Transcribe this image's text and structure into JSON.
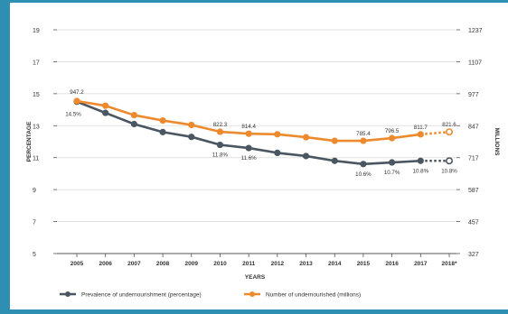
{
  "chart_data": {
    "type": "line",
    "xlabel": "YEARS",
    "ylabel_left": "PERCENTAGE",
    "ylabel_right": "MILLIONS",
    "categories": [
      "2005",
      "2006",
      "2007",
      "2008",
      "2009",
      "2010",
      "2011",
      "2012",
      "2013",
      "2014",
      "2015",
      "2016",
      "2017",
      "2018*"
    ],
    "left_axis": {
      "ticks": [
        "5",
        "7",
        "9",
        "11",
        "13",
        "15",
        "17",
        "19"
      ],
      "range": [
        5,
        19
      ]
    },
    "right_axis": {
      "ticks": [
        "327",
        "457",
        "587",
        "717",
        "847",
        "977",
        "1107",
        "1237"
      ],
      "range": [
        327,
        1237
      ]
    },
    "grid": true,
    "legend_position": "bottom",
    "series": [
      {
        "name": "Prevalence of undernourishment (percentage)",
        "axis": "left",
        "color": "#4a5661",
        "values": [
          14.5,
          13.8,
          13.1,
          12.6,
          12.3,
          11.8,
          11.6,
          11.3,
          11.1,
          10.8,
          10.6,
          10.7,
          10.8,
          10.8
        ],
        "labels": {
          "0": "14.5%",
          "5": "11.8%",
          "6": "11.6%",
          "10": "10.6%",
          "11": "10.7%",
          "12": "10.8%",
          "13": "10.8%"
        },
        "projected_from": 12
      },
      {
        "name": "Number of undernourished (millions)",
        "axis": "right",
        "color": "#ee8a2e",
        "values": [
          947.2,
          928.0,
          890.0,
          868.0,
          850.0,
          822.3,
          814.4,
          812.0,
          800.0,
          785.4,
          785.4,
          796.5,
          811.7,
          821.6
        ],
        "labels": {
          "0": "947.2",
          "5": "822.3",
          "6": "814.4",
          "10": "785.4",
          "11": "796.5",
          "12": "811.7",
          "13": "821.6"
        },
        "projected_from": 12
      }
    ]
  }
}
